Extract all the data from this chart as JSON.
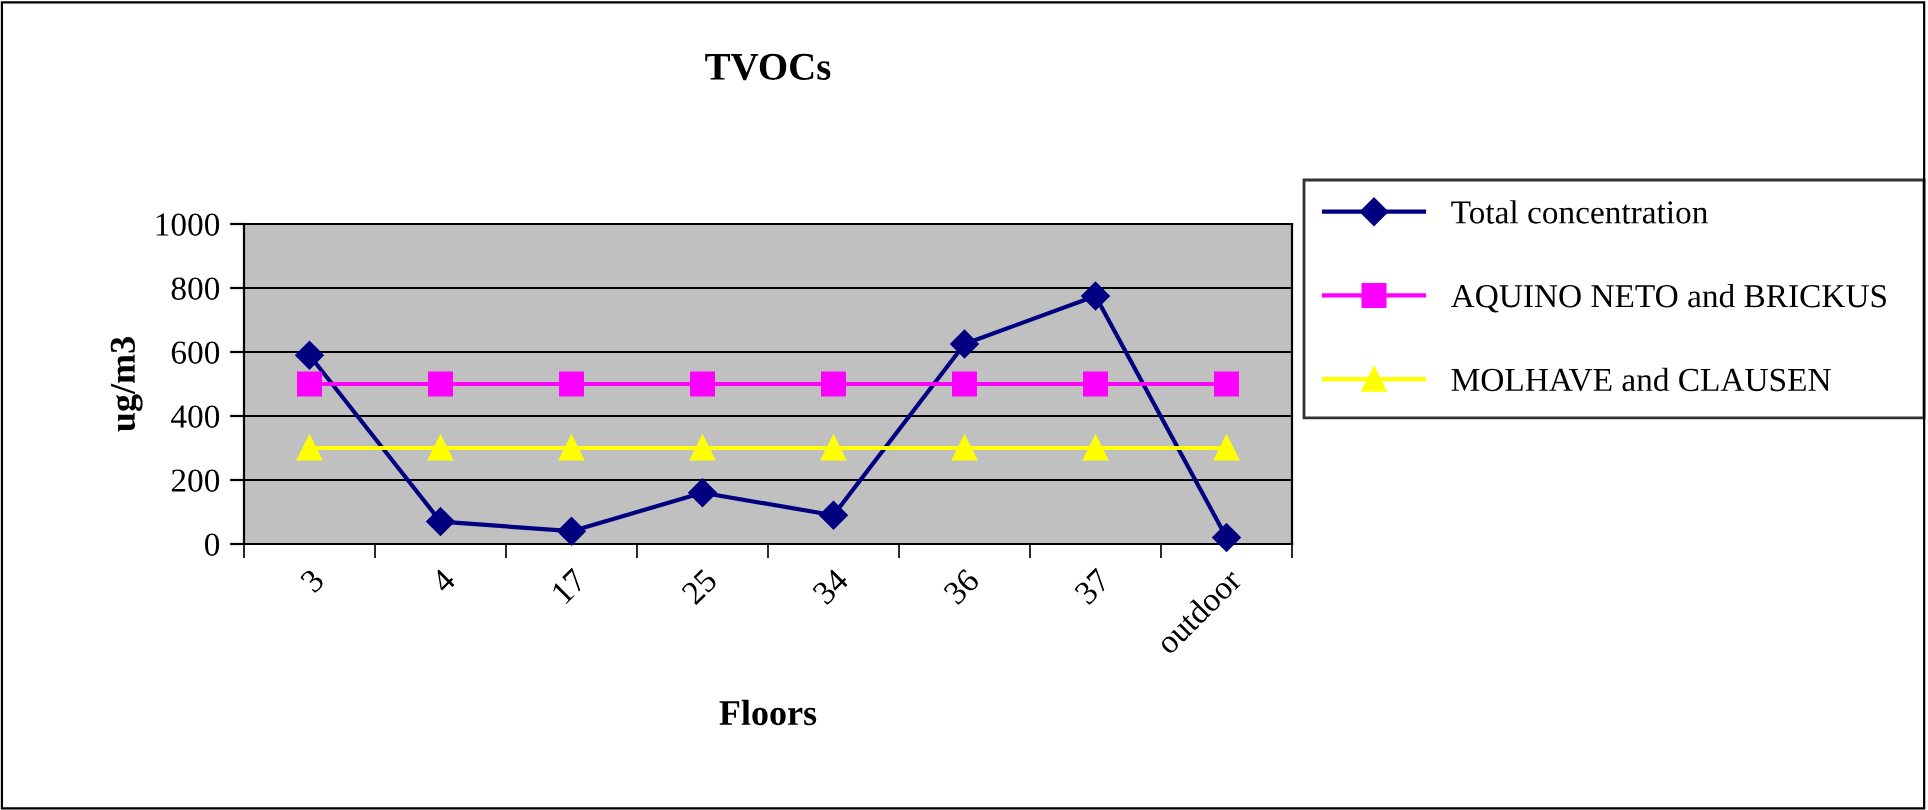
{
  "chart_data": {
    "type": "line",
    "title": "TVOCs",
    "xlabel": "Floors",
    "ylabel": "ug/m3",
    "categories": [
      "3",
      "4",
      "17",
      "25",
      "34",
      "36",
      "37",
      "outdoor"
    ],
    "series": [
      {
        "name": "Total concentration",
        "color": "#000080",
        "marker": "diamond",
        "values": [
          590,
          70,
          40,
          160,
          90,
          625,
          775,
          20
        ]
      },
      {
        "name": "AQUINO NETO and BRICKUS",
        "color": "#ff00ff",
        "marker": "square",
        "values": [
          500,
          500,
          500,
          500,
          500,
          500,
          500,
          500
        ]
      },
      {
        "name": "MOLHAVE and CLAUSEN",
        "color": "#ffff00",
        "marker": "triangle",
        "values": [
          300,
          300,
          300,
          300,
          300,
          300,
          300,
          300
        ]
      }
    ],
    "ylim": [
      0,
      1000
    ],
    "yticks": [
      0,
      200,
      400,
      600,
      800,
      1000
    ],
    "grid": "y",
    "legend": "right",
    "line_style": "solid"
  }
}
